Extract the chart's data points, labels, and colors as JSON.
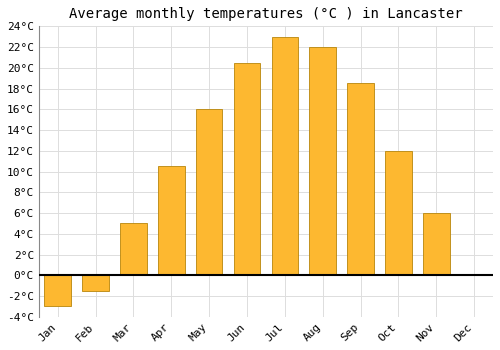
{
  "title": "Average monthly temperatures (°C ) in Lancaster",
  "months": [
    "Jan",
    "Feb",
    "Mar",
    "Apr",
    "May",
    "Jun",
    "Jul",
    "Aug",
    "Sep",
    "Oct",
    "Nov",
    "Dec"
  ],
  "values": [
    -3.0,
    -1.5,
    5.0,
    10.5,
    16.0,
    20.5,
    23.0,
    22.0,
    18.5,
    12.0,
    6.0,
    0.0
  ],
  "bar_color": "#FDB830",
  "bar_edge_color": "#B8860B",
  "ylim": [
    -4,
    24
  ],
  "yticks": [
    -4,
    -2,
    0,
    2,
    4,
    6,
    8,
    10,
    12,
    14,
    16,
    18,
    20,
    22,
    24
  ],
  "background_color": "#FFFFFF",
  "grid_color": "#DDDDDD",
  "title_fontsize": 10,
  "tick_fontsize": 8,
  "font_family": "monospace"
}
